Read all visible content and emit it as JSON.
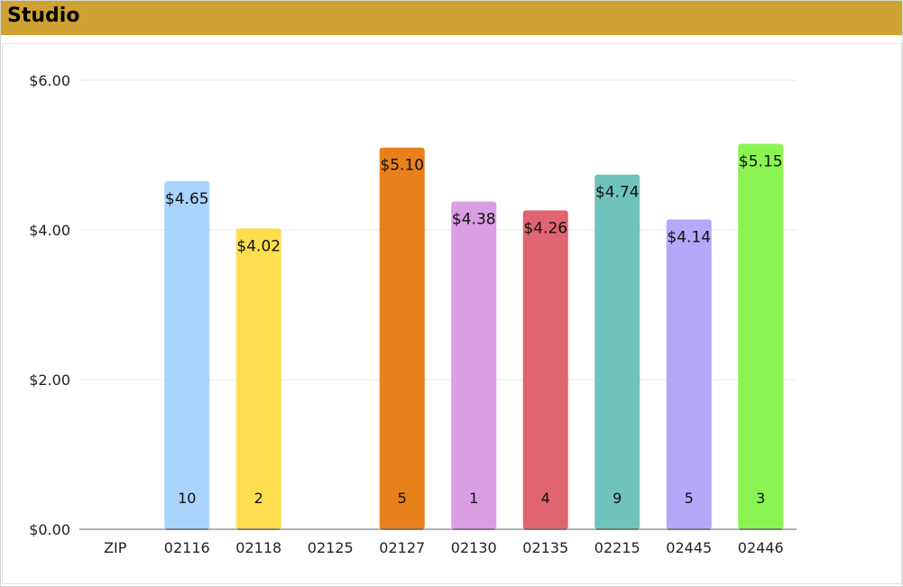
{
  "header": {
    "title": "Studio"
  },
  "chart_data": {
    "type": "bar",
    "title": "Studio",
    "xlabel": "",
    "ylabel": "",
    "categories": [
      "ZIP",
      "02116",
      "02118",
      "02125",
      "02127",
      "02130",
      "02135",
      "02215",
      "02445",
      "02446"
    ],
    "values": [
      null,
      4.65,
      4.02,
      null,
      5.1,
      4.38,
      4.26,
      4.74,
      4.14,
      5.15
    ],
    "value_labels": [
      "",
      "$4.65",
      "$4.02",
      "",
      "$5.10",
      "$4.38",
      "$4.26",
      "$4.74",
      "$4.14",
      "$5.15"
    ],
    "counts": [
      "",
      "10",
      "2",
      "",
      "5",
      "1",
      "4",
      "9",
      "5",
      "3"
    ],
    "colors": [
      "",
      "#aad4fc",
      "#fede4f",
      "",
      "#e8801b",
      "#d99ee4",
      "#e06571",
      "#70c3bb",
      "#b7a7fb",
      "#8af552"
    ],
    "ylim": [
      0,
      6
    ],
    "y_ticks": [
      0,
      2,
      4,
      6
    ],
    "y_tick_labels": [
      "$0.00",
      "$2.00",
      "$4.00",
      "$6.00"
    ],
    "grid": true,
    "legend": "none"
  }
}
